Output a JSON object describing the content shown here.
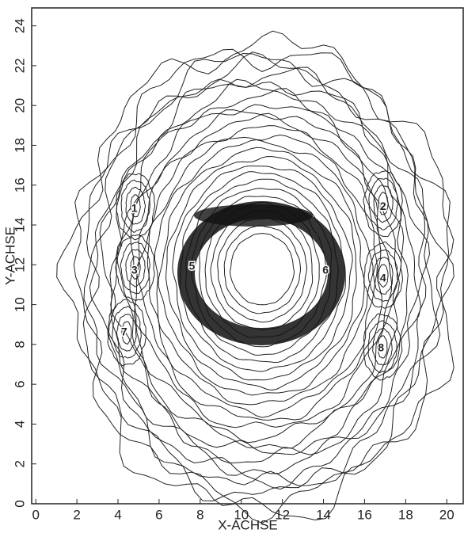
{
  "chart_data": {
    "type": "contour",
    "x_label": "X-ACHSE",
    "y_label": "Y-ACHSE",
    "xlim": [
      -0.2,
      20.8
    ],
    "ylim": [
      0,
      24.9
    ],
    "xticks": [
      0,
      2,
      4,
      6,
      8,
      10,
      12,
      14,
      16,
      18,
      20
    ],
    "yticks": [
      0,
      2,
      4,
      6,
      8,
      10,
      12,
      14,
      16,
      18,
      20,
      22,
      24
    ],
    "annotations": [
      {
        "text": "1",
        "x": 4.8,
        "y": 14.8
      },
      {
        "text": "2",
        "x": 16.9,
        "y": 14.9
      },
      {
        "text": "3",
        "x": 4.8,
        "y": 11.7
      },
      {
        "text": "4",
        "x": 16.9,
        "y": 11.3
      },
      {
        "text": "5",
        "x": 7.6,
        "y": 11.9
      },
      {
        "text": "6",
        "x": 14.1,
        "y": 11.7
      },
      {
        "text": "7",
        "x": 4.3,
        "y": 8.6
      },
      {
        "text": "8",
        "x": 16.8,
        "y": 7.8
      }
    ]
  }
}
